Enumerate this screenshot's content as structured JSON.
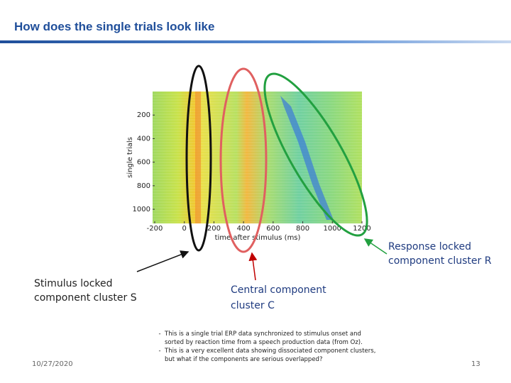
{
  "title": "How does the single trials look like",
  "figure": {
    "y_label": "single trials",
    "x_label": "time after stimulus (ms)",
    "xlim": [
      -200,
      1200
    ],
    "xticks": [
      -200,
      0,
      200,
      400,
      600,
      800,
      1000,
      1200
    ],
    "ylim": [
      0,
      1120
    ],
    "yticks": [
      200,
      400,
      600,
      800,
      1000
    ]
  },
  "annotations": {
    "response": "Response locked component cluster R",
    "stimulus": "Stimulus locked component cluster S",
    "central": "Central component cluster C"
  },
  "bullets": [
    "This is a single trial ERP data synchronized to stimulus onset and sorted by reaction time from a speech production data (from Oz).",
    "This is a very excellent data showing dissociated component clusters, but what if the components are serious overlapped?"
  ],
  "footer": {
    "date": "10/27/2020",
    "page": "13"
  }
}
